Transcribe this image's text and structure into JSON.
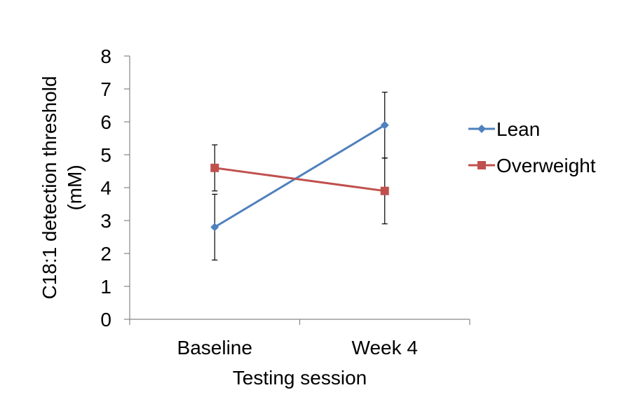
{
  "chart_data": {
    "type": "line",
    "title": "",
    "xlabel": "Testing session",
    "ylabel_lines": [
      "C18:1 detection threshold",
      "(mM)"
    ],
    "categories": [
      "Baseline",
      "Week 4"
    ],
    "ylim": [
      0,
      8
    ],
    "yticks": [
      "0",
      "1",
      "2",
      "3",
      "4",
      "5",
      "6",
      "7",
      "8"
    ],
    "grid": false,
    "legend_position": "right",
    "series": [
      {
        "name": "Lean",
        "color": "#4f81bd",
        "marker": "diamond",
        "values": [
          2.8,
          5.9
        ],
        "errors": [
          1.0,
          1.0
        ]
      },
      {
        "name": "Overweight",
        "color": "#c0504d",
        "marker": "square",
        "values": [
          4.6,
          3.9
        ],
        "errors": [
          0.7,
          1.0
        ]
      }
    ]
  }
}
